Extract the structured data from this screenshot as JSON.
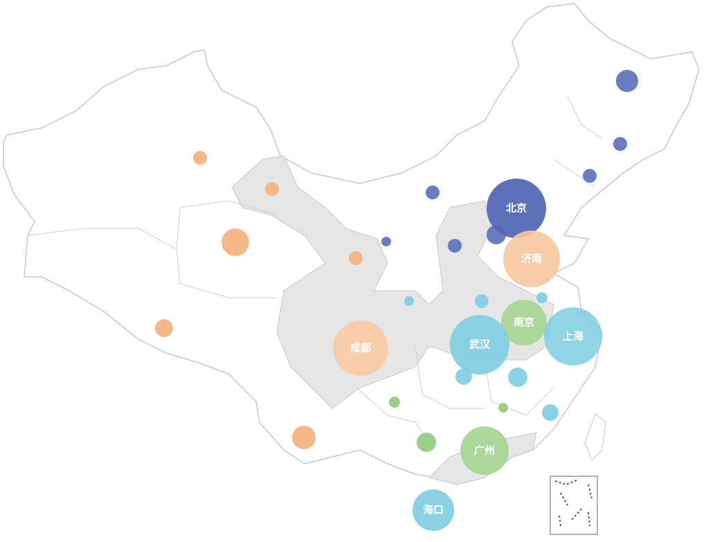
{
  "city_labels": [
    "北京",
    "济南",
    "南京",
    "上海",
    "武汉",
    "成都",
    "广州",
    "海口"
  ]
}
